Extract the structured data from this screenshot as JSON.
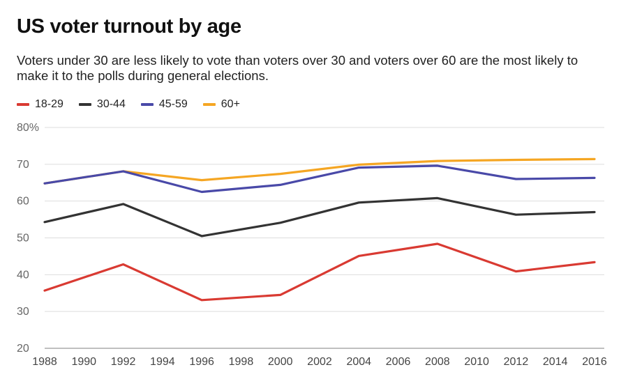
{
  "header": {
    "title": "US voter turnout by age",
    "subtitle": "Voters under 30 are less likely to vote than voters over 30 and voters over 60 are the most likely to make it to the polls during general elections."
  },
  "chart_data": {
    "type": "line",
    "title": "US voter turnout by age",
    "subtitle": "Voters under 30 are less likely to vote than voters over 30 and voters over 60 are the most likely to make it to the polls during general elections.",
    "xlabel": "",
    "ylabel": "",
    "x": [
      1988,
      1992,
      1996,
      2000,
      2004,
      2008,
      2012,
      2016
    ],
    "xticks": [
      "1988",
      "1990",
      "1992",
      "1994",
      "1996",
      "1998",
      "2000",
      "2002",
      "2004",
      "2006",
      "2008",
      "2010",
      "2012",
      "2014",
      "2016"
    ],
    "yticks": [
      "80%",
      "70",
      "60",
      "50",
      "40",
      "30",
      "20"
    ],
    "ylim": [
      20,
      80
    ],
    "xlim": [
      1988,
      2016
    ],
    "grid": true,
    "legend_position": "top-left",
    "series": [
      {
        "name": "18-29",
        "color": "#d93a32",
        "values": [
          35.7,
          42.8,
          33.1,
          34.5,
          45.1,
          48.4,
          40.9,
          43.4
        ]
      },
      {
        "name": "30-44",
        "color": "#333333",
        "values": [
          54.3,
          59.2,
          50.5,
          54.1,
          59.6,
          60.8,
          56.3,
          57.0
        ]
      },
      {
        "name": "45-59",
        "color": "#4949a8",
        "values": [
          64.8,
          68.1,
          62.5,
          64.4,
          69.1,
          69.6,
          66.0,
          66.3
        ]
      },
      {
        "name": "60+",
        "color": "#f5a623",
        "values": [
          64.8,
          68.1,
          65.7,
          67.4,
          69.9,
          70.9,
          71.2,
          71.4
        ]
      }
    ]
  }
}
